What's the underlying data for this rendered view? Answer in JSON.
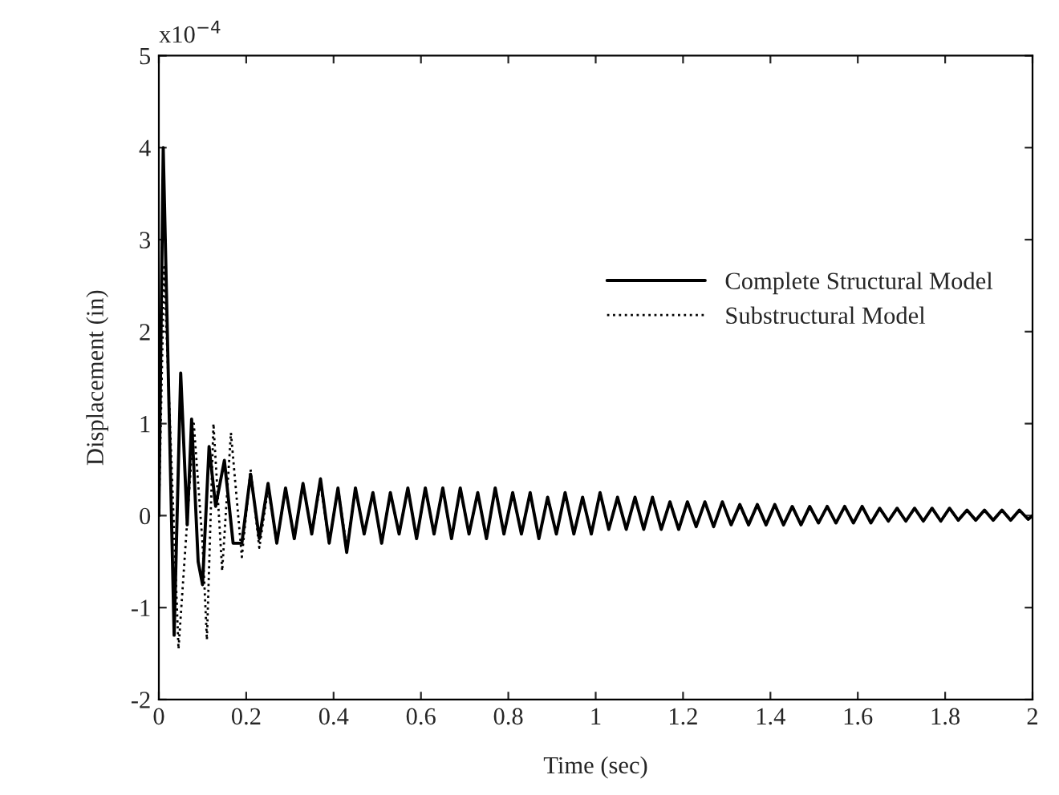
{
  "chart_data": {
    "type": "line",
    "xlabel": "Time (sec)",
    "ylabel": "Displacement (in)",
    "annotations": [
      "x10$^{−4}$"
    ],
    "xlim": [
      0,
      2
    ],
    "xticks": [
      0,
      0.2,
      0.4,
      0.6,
      0.8,
      1,
      1.2,
      1.4,
      1.6,
      1.8,
      2
    ],
    "ylim": [
      -2,
      5
    ],
    "yticks": [
      -2,
      -1,
      0,
      1,
      2,
      3,
      4,
      5
    ],
    "grid": false,
    "legend": "center right",
    "series": [
      {
        "name": "Complete Structural Model",
        "color": "#000000",
        "line_style": "solid",
        "x": [
          0,
          0.01,
          0.035,
          0.05,
          0.065,
          0.075,
          0.09,
          0.1,
          0.115,
          0.13,
          0.15,
          0.17,
          0.19,
          0.21,
          0.23,
          0.25,
          0.27,
          0.29,
          0.31,
          0.33,
          0.35,
          0.37,
          0.39,
          0.41,
          0.43,
          0.45,
          0.47,
          0.49,
          0.51,
          0.53,
          0.55,
          0.57,
          0.59,
          0.61,
          0.63,
          0.65,
          0.67,
          0.69,
          0.71,
          0.73,
          0.75,
          0.77,
          0.79,
          0.81,
          0.83,
          0.85,
          0.87,
          0.89,
          0.91,
          0.93,
          0.95,
          0.97,
          0.99,
          1.01,
          1.03,
          1.05,
          1.07,
          1.09,
          1.11,
          1.13,
          1.15,
          1.17,
          1.19,
          1.21,
          1.23,
          1.25,
          1.27,
          1.29,
          1.31,
          1.33,
          1.35,
          1.37,
          1.39,
          1.41,
          1.43,
          1.45,
          1.47,
          1.49,
          1.51,
          1.53,
          1.55,
          1.57,
          1.59,
          1.61,
          1.63,
          1.65,
          1.67,
          1.69,
          1.71,
          1.73,
          1.75,
          1.77,
          1.79,
          1.81,
          1.83,
          1.85,
          1.87,
          1.89,
          1.91,
          1.93,
          1.95,
          1.97,
          1.99,
          2
        ],
        "values": [
          0,
          4.0,
          -1.3,
          1.55,
          -0.1,
          1.05,
          -0.5,
          -0.75,
          0.75,
          0.1,
          0.6,
          -0.3,
          -0.3,
          0.45,
          -0.25,
          0.35,
          -0.3,
          0.3,
          -0.25,
          0.35,
          -0.2,
          0.4,
          -0.3,
          0.3,
          -0.4,
          0.3,
          -0.2,
          0.25,
          -0.3,
          0.25,
          -0.2,
          0.3,
          -0.25,
          0.3,
          -0.2,
          0.3,
          -0.25,
          0.3,
          -0.2,
          0.25,
          -0.25,
          0.3,
          -0.2,
          0.25,
          -0.2,
          0.25,
          -0.25,
          0.2,
          -0.2,
          0.25,
          -0.2,
          0.2,
          -0.2,
          0.25,
          -0.15,
          0.2,
          -0.15,
          0.2,
          -0.15,
          0.2,
          -0.15,
          0.15,
          -0.15,
          0.15,
          -0.12,
          0.15,
          -0.12,
          0.15,
          -0.1,
          0.12,
          -0.1,
          0.12,
          -0.1,
          0.12,
          -0.1,
          0.1,
          -0.1,
          0.1,
          -0.08,
          0.1,
          -0.08,
          0.1,
          -0.08,
          0.1,
          -0.08,
          0.08,
          -0.06,
          0.08,
          -0.06,
          0.08,
          -0.06,
          0.08,
          -0.06,
          0.08,
          -0.05,
          0.06,
          -0.05,
          0.06,
          -0.05,
          0.06,
          -0.05,
          0.06,
          -0.04,
          0
        ]
      },
      {
        "name": "Substructural Model",
        "color": "#000000",
        "line_style": "dotted",
        "x": [
          0,
          0.012,
          0.045,
          0.08,
          0.1,
          0.11,
          0.125,
          0.145,
          0.165,
          0.19,
          0.21,
          0.23,
          0.25,
          0.27,
          0.29,
          0.31,
          0.33,
          0.35,
          0.37,
          0.39,
          0.41,
          0.43,
          0.45,
          0.47,
          0.49,
          0.51,
          0.53,
          0.55,
          0.57,
          0.59,
          0.61,
          0.63,
          0.65,
          0.67,
          0.69,
          0.71,
          0.73,
          0.75,
          0.77,
          0.79,
          0.81,
          0.83,
          0.85,
          0.87,
          0.89,
          0.91,
          0.93,
          0.95,
          0.97,
          0.99,
          1.01,
          1.03,
          1.05,
          1.07,
          1.09,
          1.11,
          1.13,
          1.15,
          1.17,
          1.19,
          1.21,
          1.23,
          1.25,
          1.27,
          1.29,
          1.31,
          1.33,
          1.35,
          1.37,
          1.39,
          1.41,
          1.43,
          1.45,
          1.47,
          1.49,
          1.51,
          1.53,
          1.55,
          1.57,
          1.59,
          1.61,
          1.63,
          1.65,
          1.67,
          1.69,
          1.71,
          1.73,
          1.75,
          1.77,
          1.79,
          1.81,
          1.83,
          1.85,
          1.87,
          1.89,
          1.91,
          1.93,
          1.95,
          1.97,
          1.99,
          2
        ],
        "values": [
          0,
          2.7,
          -1.45,
          1.0,
          -0.3,
          -1.35,
          1.0,
          -0.6,
          0.9,
          -0.45,
          0.5,
          -0.35,
          0.3,
          -0.3,
          0.3,
          -0.25,
          0.35,
          -0.2,
          0.35,
          -0.3,
          0.3,
          -0.35,
          0.3,
          -0.2,
          0.25,
          -0.3,
          0.25,
          -0.2,
          0.3,
          -0.25,
          0.3,
          -0.2,
          0.3,
          -0.25,
          0.3,
          -0.2,
          0.25,
          -0.25,
          0.3,
          -0.2,
          0.25,
          -0.2,
          0.25,
          -0.25,
          0.2,
          -0.2,
          0.25,
          -0.2,
          0.2,
          -0.2,
          0.25,
          -0.15,
          0.2,
          -0.15,
          0.2,
          -0.15,
          0.2,
          -0.15,
          0.15,
          -0.15,
          0.15,
          -0.12,
          0.15,
          -0.12,
          0.15,
          -0.1,
          0.12,
          -0.1,
          0.12,
          -0.1,
          0.12,
          -0.1,
          0.1,
          -0.1,
          0.1,
          -0.08,
          0.1,
          -0.08,
          0.1,
          -0.08,
          0.1,
          -0.08,
          0.08,
          -0.06,
          0.08,
          -0.06,
          0.08,
          -0.06,
          0.08,
          -0.06,
          0.08,
          -0.05,
          0.06,
          -0.05,
          0.06,
          -0.05,
          0.06,
          -0.05,
          0.06,
          -0.04,
          0
        ]
      }
    ]
  }
}
